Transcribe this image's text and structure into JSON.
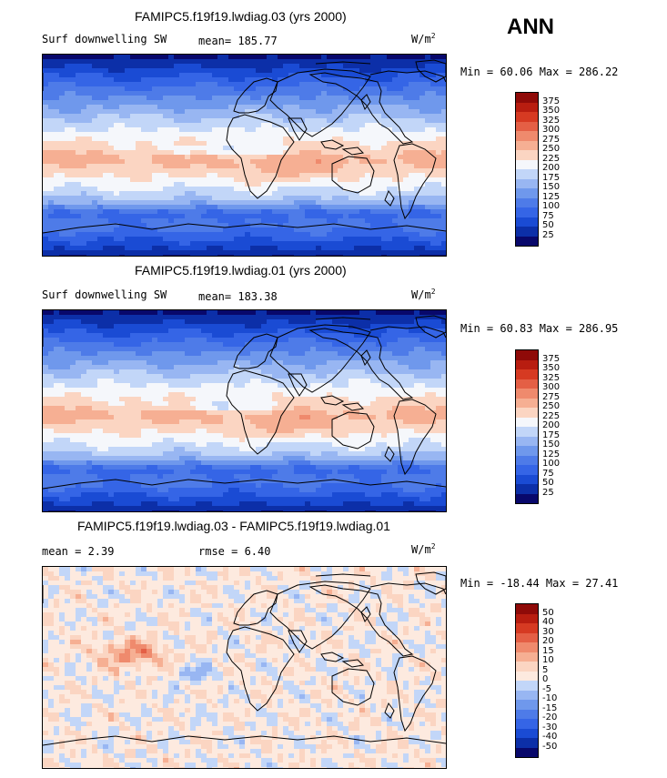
{
  "season": "ANN",
  "colors": {
    "abs_scale": [
      "#08086b",
      "#0c2fa8",
      "#1a4bd4",
      "#3565e6",
      "#4e7be8",
      "#6f98ec",
      "#98b6f2",
      "#c2d6f8",
      "#f5f7fb",
      "#fbd5c2",
      "#f6af93",
      "#ef8a6d",
      "#e45f45",
      "#d63a22",
      "#b81d10",
      "#8f0a08"
    ],
    "diff_scale": [
      "#08086b",
      "#0c2fa8",
      "#1a4bd4",
      "#3565e6",
      "#4e7be8",
      "#6f98ec",
      "#98b6f2",
      "#c2d6f8",
      "#fdeadf",
      "#fbd5c2",
      "#f6af93",
      "#ef8a6d",
      "#e45f45",
      "#d63a22",
      "#b81d10",
      "#8f0a08"
    ],
    "coast": "#000000"
  },
  "panels": [
    {
      "title": "FAMIPC5.f19f19.lwdiag.03 (yrs 2000)",
      "var_label": "Surf downwelling SW",
      "mean_text": "mean= 185.77",
      "rmse_text": "",
      "units": "W/m",
      "units_exp": "2",
      "minmax": "Min =  60.06 Max = 286.22",
      "ticks": [
        "375",
        "350",
        "325",
        "300",
        "275",
        "250",
        "225",
        "200",
        "175",
        "150",
        "125",
        "100",
        "75",
        "50",
        "25"
      ],
      "type": "abs"
    },
    {
      "title": "FAMIPC5.f19f19.lwdiag.01 (yrs 2000)",
      "var_label": "Surf downwelling SW",
      "mean_text": "mean= 183.38",
      "rmse_text": "",
      "units": "W/m",
      "units_exp": "2",
      "minmax": "Min =  60.83 Max = 286.95",
      "ticks": [
        "375",
        "350",
        "325",
        "300",
        "275",
        "250",
        "225",
        "200",
        "175",
        "150",
        "125",
        "100",
        "75",
        "50",
        "25"
      ],
      "type": "abs"
    },
    {
      "title": "FAMIPC5.f19f19.lwdiag.03 - FAMIPC5.f19f19.lwdiag.01",
      "var_label": "",
      "mean_text": "mean =   2.39",
      "rmse_text": "rmse =   6.40",
      "units": "W/m",
      "units_exp": "2",
      "minmax": "Min = -18.44 Max =  27.41",
      "ticks": [
        "50",
        "40",
        "30",
        "20",
        "15",
        "10",
        "5",
        "0",
        "-5",
        "-10",
        "-15",
        "-20",
        "-30",
        "-40",
        "-50"
      ],
      "type": "diff"
    }
  ]
}
